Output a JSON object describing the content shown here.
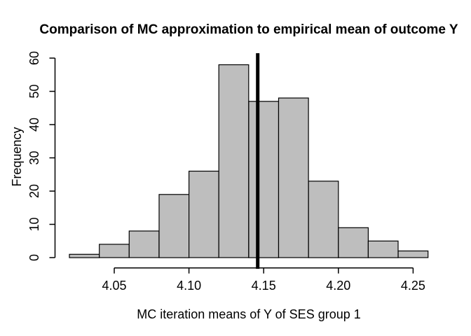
{
  "figure": {
    "background": "#ffffff"
  },
  "chart_data": {
    "type": "bar",
    "subtype": "histogram",
    "title": "Comparison of MC approximation to empirical mean of outcome Y",
    "xlabel": "MC iteration means of Y of SES group 1",
    "ylabel": "Frequency",
    "bin_edges": [
      4.02,
      4.04,
      4.06,
      4.08,
      4.1,
      4.12,
      4.14,
      4.16,
      4.18,
      4.2,
      4.22,
      4.24,
      4.26
    ],
    "counts": [
      1,
      4,
      8,
      19,
      26,
      58,
      47,
      48,
      23,
      9,
      5,
      2
    ],
    "x_ticks": [
      {
        "value": 4.05,
        "label": "4.05"
      },
      {
        "value": 4.1,
        "label": "4.10"
      },
      {
        "value": 4.15,
        "label": "4.15"
      },
      {
        "value": 4.2,
        "label": "4.20"
      },
      {
        "value": 4.25,
        "label": "4.25"
      }
    ],
    "y_ticks": [
      {
        "value": 0,
        "label": "0"
      },
      {
        "value": 10,
        "label": "10"
      },
      {
        "value": 20,
        "label": "20"
      },
      {
        "value": 30,
        "label": "30"
      },
      {
        "value": 40,
        "label": "40"
      },
      {
        "value": 50,
        "label": "50"
      },
      {
        "value": 60,
        "label": "60"
      }
    ],
    "xlim": [
      4.02,
      4.26
    ],
    "ylim": [
      0,
      60
    ],
    "grid": false,
    "legend": null,
    "reference_line": {
      "orientation": "vertical",
      "x": 4.146
    },
    "colors": {
      "bar_fill": "#bebebe",
      "bar_stroke": "#000000",
      "axis": "#000000",
      "reference_line": "#000000",
      "background": "#ffffff"
    }
  }
}
